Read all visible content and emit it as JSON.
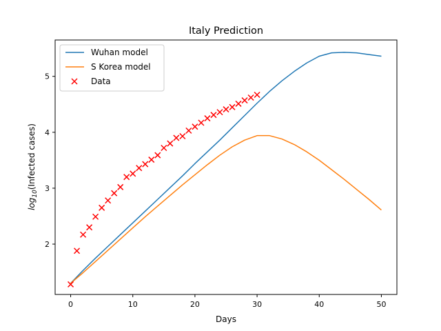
{
  "chart_data": {
    "type": "line",
    "title": "Italy Prediction",
    "xlabel": "Days",
    "ylabel": {
      "prefix": "log",
      "subscript": "10",
      "suffix": "(Infected cases)"
    },
    "xlim": [
      -2.5,
      52.5
    ],
    "ylim": [
      1.1,
      5.65
    ],
    "xticks": [
      0,
      10,
      20,
      30,
      40,
      50
    ],
    "yticks": [
      2,
      3,
      4,
      5
    ],
    "grid": false,
    "legend_position": "upper-left",
    "series": [
      {
        "name": "Wuhan model",
        "kind": "line",
        "color": "#1f77b4",
        "x": [
          0,
          2,
          4,
          6,
          8,
          10,
          12,
          14,
          16,
          18,
          20,
          22,
          24,
          26,
          28,
          30,
          32,
          34,
          36,
          38,
          40,
          42,
          44,
          46,
          48,
          50
        ],
        "y": [
          1.3,
          1.53,
          1.75,
          1.96,
          2.17,
          2.38,
          2.59,
          2.8,
          3.01,
          3.22,
          3.44,
          3.65,
          3.86,
          4.08,
          4.3,
          4.52,
          4.73,
          4.92,
          5.09,
          5.24,
          5.36,
          5.42,
          5.43,
          5.42,
          5.39,
          5.36
        ]
      },
      {
        "name": "S Korea model",
        "kind": "line",
        "color": "#ff7f0e",
        "x": [
          0,
          2,
          4,
          6,
          8,
          10,
          12,
          14,
          16,
          18,
          20,
          22,
          24,
          26,
          28,
          30,
          32,
          34,
          36,
          38,
          40,
          42,
          44,
          46,
          48,
          50
        ],
        "y": [
          1.3,
          1.49,
          1.69,
          1.89,
          2.09,
          2.29,
          2.49,
          2.68,
          2.87,
          3.06,
          3.24,
          3.42,
          3.59,
          3.74,
          3.86,
          3.94,
          3.94,
          3.88,
          3.78,
          3.65,
          3.5,
          3.33,
          3.16,
          2.98,
          2.8,
          2.61
        ]
      },
      {
        "name": "Data",
        "kind": "scatter",
        "color": "#ff0000",
        "marker": "x",
        "x": [
          0,
          1,
          2,
          3,
          4,
          5,
          6,
          7,
          8,
          9,
          10,
          11,
          12,
          13,
          14,
          15,
          16,
          17,
          18,
          19,
          20,
          21,
          22,
          23,
          24,
          25,
          26,
          27,
          28,
          29,
          30
        ],
        "y": [
          1.28,
          1.88,
          2.17,
          2.3,
          2.49,
          2.65,
          2.78,
          2.91,
          3.02,
          3.2,
          3.26,
          3.36,
          3.43,
          3.51,
          3.59,
          3.72,
          3.8,
          3.9,
          3.93,
          4.03,
          4.1,
          4.17,
          4.25,
          4.31,
          4.36,
          4.41,
          4.45,
          4.51,
          4.57,
          4.62,
          4.67
        ]
      }
    ]
  }
}
